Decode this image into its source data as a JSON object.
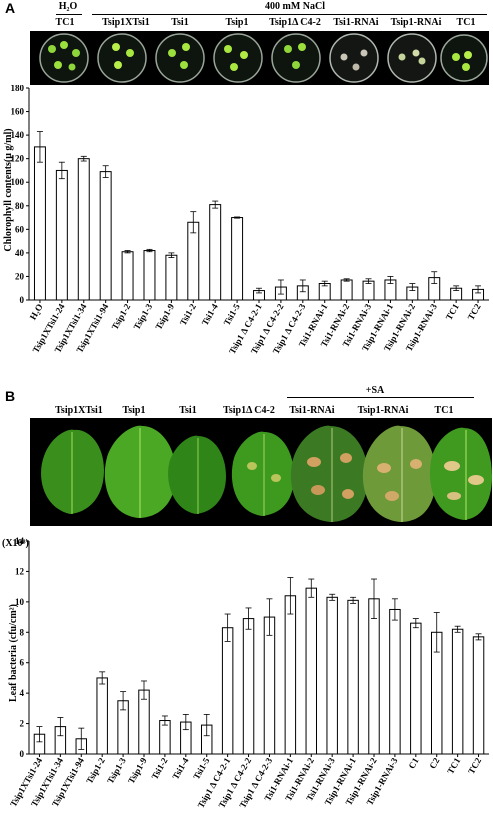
{
  "panelA": {
    "letter": "A",
    "h2o_label": "H₂O",
    "nacl_label": "400 mM NaCl",
    "plate_labels": [
      "TC1",
      "Tsip1XTsi1",
      "Tsi1",
      "Tsip1",
      "Tsip1Δ C4-2",
      "Tsi1-RNAi",
      "Tsip1-RNAi",
      "TC1"
    ]
  },
  "panelB": {
    "letter": "B",
    "sa_label": "+SA",
    "leaf_labels": [
      "Tsip1XTsi1",
      "Tsip1",
      "Tsi1",
      "Tsip1Δ C4-2",
      "Tsi1-RNAi",
      "Tsip1-RNAi",
      "TC1"
    ],
    "multiplier_label": "(X10⁸)"
  },
  "colors": {
    "plate_green": "#9be03c",
    "leaf_green": "#3f9a1f",
    "lesion": "#d8b070",
    "background_photo": "#000000"
  },
  "chart_data": [
    {
      "type": "bar",
      "title": "",
      "xlabel": "",
      "ylabel": "Chlorophyll contents(μ g/ml)",
      "ylim": [
        0,
        180
      ],
      "yticks": [
        0,
        20,
        40,
        60,
        80,
        100,
        120,
        140,
        160,
        180
      ],
      "categories": [
        "H₂O",
        "Tsip1XTsi1-24",
        "Tsip1XTsi1-34",
        "Tsip1XTsi1-94",
        "Tsip1-2",
        "Tsip1-3",
        "Tsip1-9",
        "Tsi1-2",
        "Tsi1-4",
        "Tsi1-5",
        "Tsip1 Δ C4-2-1",
        "Tsip1 Δ C4-2-2",
        "Tsip1 Δ C4-2-3",
        "Tsi1-RNAi-1",
        "Tsi1-RNAi-2",
        "Tsi1-RNAi-3",
        "Tsip1-RNAi-1",
        "Tsip1-RNAi-2",
        "Tsip1-RNAi-3",
        "TC1",
        "TC2"
      ],
      "values": [
        130,
        110,
        120,
        109,
        41,
        42,
        38,
        66,
        81,
        70,
        8,
        11,
        12,
        14,
        17,
        16,
        17,
        11,
        19,
        10,
        9
      ],
      "errors": [
        13,
        7,
        2,
        5,
        1,
        1,
        2,
        9,
        3,
        0.5,
        2,
        6,
        5,
        2,
        1,
        2,
        3,
        3,
        5,
        2,
        3
      ]
    },
    {
      "type": "bar",
      "title": "",
      "xlabel": "",
      "ylabel": "Leaf bacteria  (cfu/cm²)",
      "ylim": [
        0,
        14
      ],
      "yticks": [
        0,
        2,
        4,
        6,
        8,
        10,
        12,
        14
      ],
      "categories": [
        "Tsip1XTsi1-24",
        "Tsip1XTsi1-34",
        "Tsip1XTsi1-94",
        "Tsip1-2",
        "Tsip1-3",
        "Tsip1-9",
        "Tsi1-2",
        "Tsi1-4",
        "Tsi1-5",
        "Tsip1 Δ C4-2-1",
        "Tsip1 Δ C4-2-2",
        "Tsip1 Δ C4-2-3",
        "Tsi1-RNAi-1",
        "Tsi1-RNAi-2",
        "Tsi1-RNAi-3",
        "Tsip1-RNAi-1",
        "Tsip1-RNAi-2",
        "Tsip1-RNAi-3",
        "C1",
        "C2",
        "TC1",
        "TC2"
      ],
      "values": [
        1.3,
        1.8,
        1.0,
        5.0,
        3.5,
        4.2,
        2.2,
        2.1,
        1.9,
        8.3,
        8.9,
        9.0,
        10.4,
        10.9,
        10.3,
        10.1,
        10.2,
        9.5,
        8.6,
        8.0,
        8.2,
        7.7
      ],
      "errors": [
        0.5,
        0.6,
        0.7,
        0.4,
        0.6,
        0.6,
        0.3,
        0.5,
        0.7,
        0.9,
        0.7,
        1.2,
        1.2,
        0.6,
        0.2,
        0.2,
        1.3,
        0.7,
        0.3,
        1.3,
        0.2,
        0.2
      ]
    }
  ]
}
